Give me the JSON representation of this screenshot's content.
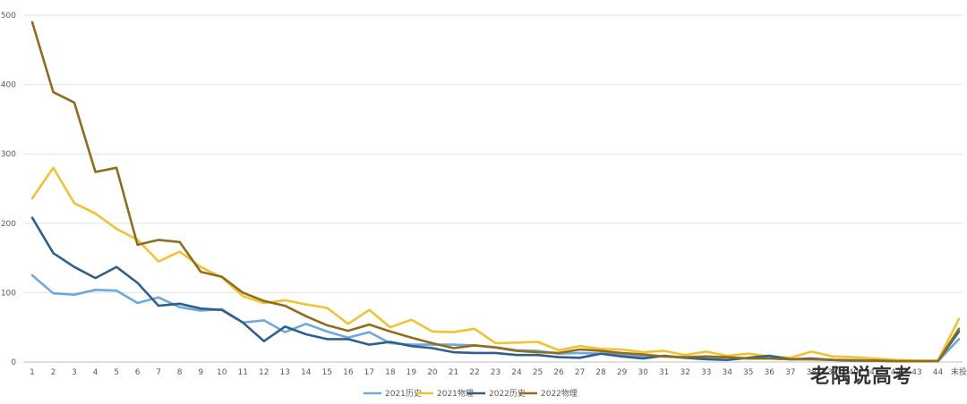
{
  "chart_data": {
    "type": "line",
    "title": "",
    "xlabel": "",
    "ylabel": "",
    "ylim": [
      0,
      500
    ],
    "yticks": [
      "0",
      "100",
      "200",
      "300",
      "400",
      "500"
    ],
    "grid": true,
    "legend_position": "bottom",
    "categories": [
      "1",
      "2",
      "3",
      "4",
      "5",
      "6",
      "7",
      "8",
      "9",
      "10",
      "11",
      "12",
      "13",
      "14",
      "15",
      "16",
      "17",
      "18",
      "19",
      "20",
      "21",
      "22",
      "23",
      "24",
      "25",
      "26",
      "27",
      "28",
      "29",
      "30",
      "31",
      "32",
      "33",
      "34",
      "35",
      "36",
      "37",
      "38",
      "39",
      "40",
      "41",
      "42",
      "43",
      "44",
      "末投"
    ],
    "series": [
      {
        "name": "2021历史",
        "color": "#6fa8dc",
        "values": [
          125,
          99,
          97,
          104,
          103,
          85,
          93,
          79,
          74,
          76,
          57,
          60,
          43,
          55,
          44,
          35,
          43,
          27,
          25,
          25,
          25,
          24,
          21,
          17,
          16,
          12,
          13,
          12,
          11,
          8,
          8,
          6,
          7,
          7,
          5,
          5,
          4,
          4,
          3,
          3,
          2,
          2,
          1,
          1,
          33
        ]
      },
      {
        "name": "2021物理",
        "color": "#f1c232",
        "values": [
          236,
          280,
          229,
          214,
          192,
          176,
          145,
          159,
          137,
          122,
          95,
          85,
          89,
          83,
          78,
          55,
          75,
          50,
          61,
          44,
          43,
          48,
          27,
          28,
          29,
          17,
          23,
          19,
          18,
          14,
          16,
          10,
          15,
          9,
          12,
          8,
          6,
          15,
          8,
          7,
          5,
          3,
          2,
          2,
          62
        ]
      },
      {
        "name": "2022历史",
        "color": "#2f5f8a",
        "values": [
          208,
          157,
          137,
          121,
          137,
          114,
          81,
          84,
          77,
          75,
          57,
          30,
          51,
          40,
          33,
          33,
          25,
          29,
          23,
          20,
          14,
          13,
          13,
          10,
          10,
          7,
          6,
          12,
          8,
          5,
          9,
          6,
          4,
          3,
          6,
          9,
          4,
          5,
          3,
          2,
          2,
          1,
          1,
          1,
          44
        ]
      },
      {
        "name": "2022物理",
        "color": "#8f6d1a",
        "values": [
          490,
          389,
          374,
          274,
          280,
          169,
          176,
          173,
          130,
          123,
          100,
          88,
          81,
          66,
          53,
          45,
          54,
          44,
          35,
          27,
          20,
          24,
          21,
          16,
          14,
          13,
          18,
          16,
          13,
          11,
          8,
          7,
          8,
          7,
          5,
          5,
          4,
          4,
          3,
          2,
          2,
          1,
          1,
          1,
          48
        ]
      }
    ]
  },
  "watermark": "老隅说高考"
}
